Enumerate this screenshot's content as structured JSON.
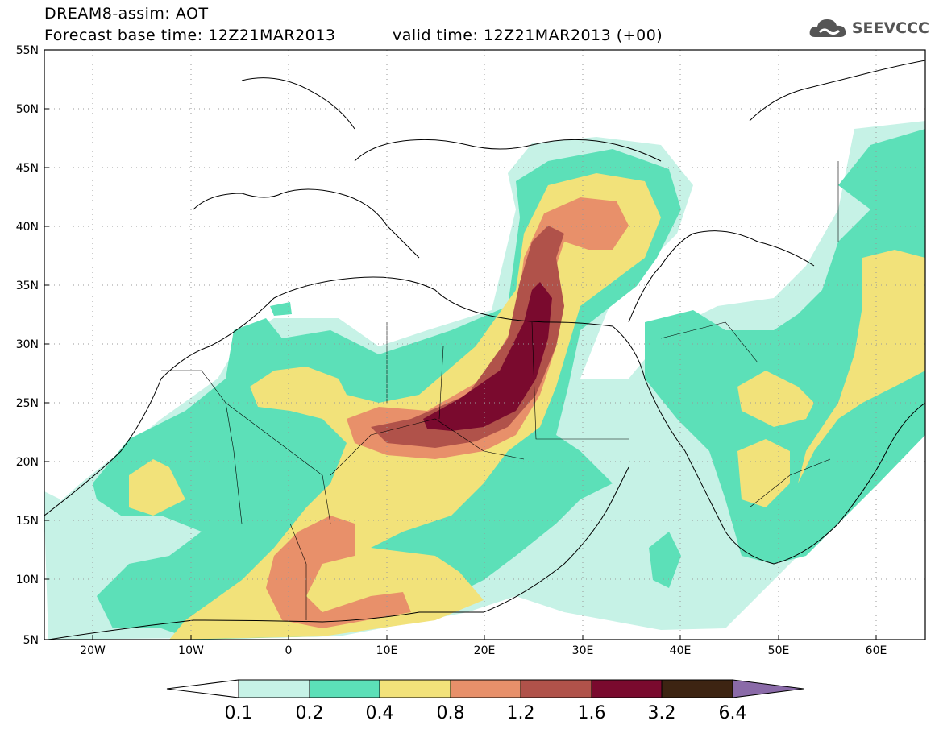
{
  "header": {
    "line1": "DREAM8-assim: AOT",
    "line2": "Forecast base time: 12Z21MAR2013",
    "line3": "valid time: 12Z21MAR2013 (+00)"
  },
  "logo": {
    "text": "SEEVCCC",
    "icon": "cloud-icon"
  },
  "map": {
    "variable": "AOT",
    "lat_labels": [
      "5N",
      "10N",
      "15N",
      "20N",
      "25N",
      "30N",
      "35N",
      "40N",
      "45N",
      "50N",
      "55N"
    ],
    "lon_labels": [
      "20W",
      "10W",
      "0",
      "10E",
      "20E",
      "30E",
      "40E",
      "50E",
      "60E"
    ],
    "lat_range": [
      5,
      55
    ],
    "lon_range": [
      -25,
      65
    ],
    "grid": true
  },
  "colorbar": {
    "levels": [
      "0.1",
      "0.2",
      "0.4",
      "0.8",
      "1.2",
      "1.6",
      "3.2",
      "6.4"
    ],
    "colors": [
      "#c6f2e6",
      "#5ce0b8",
      "#f2e27a",
      "#e8906a",
      "#b0524a",
      "#7a0a2e",
      "#3d2412",
      "#8a6aa8"
    ]
  }
}
